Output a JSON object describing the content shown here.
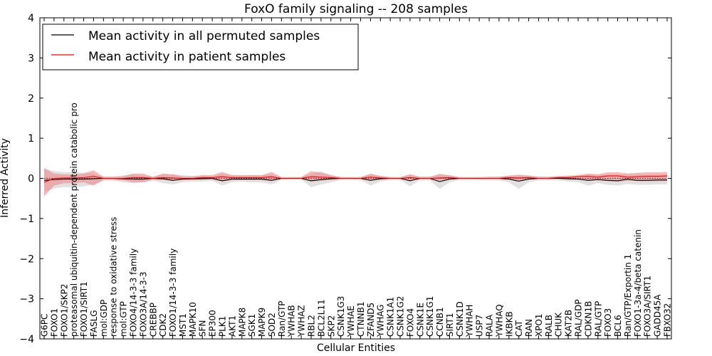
{
  "chart_data": {
    "type": "line",
    "title": "FoxO family signaling -- 208 samples",
    "xlabel": "Cellular Entities",
    "ylabel": "Inferred Activity",
    "ylim": [
      -4,
      4
    ],
    "yticks": [
      -4,
      -3,
      -2,
      -1,
      0,
      1,
      2,
      3,
      4
    ],
    "ytick_labels": [
      "−4",
      "−3",
      "−2",
      "−1",
      "0",
      "1",
      "2",
      "3",
      "4"
    ],
    "legend_position": "top-left",
    "categories": [
      "G6PC",
      "FOXO1",
      "FOXO1/SKP2",
      "proteasomal ubiquitin-dependent protein catabolic pro",
      "FOXO1/SIRT1",
      "FASLG",
      "mol:GDP",
      "response to oxidative stress",
      "mol:GTP",
      "FOXO4/14-3-3 family",
      "FOXO3A/14-3-3",
      "CREBBP",
      "CDK2",
      "FOXO1/14-3-3 family",
      "MST1",
      "MAPK10",
      "SFN",
      "EP300",
      "PLK1",
      "AKT1",
      "MAPK8",
      "SGK1",
      "MAPK9",
      "SOD2",
      "Ran/GTP",
      "YWHAB",
      "YWHAZ",
      "RBL2",
      "BCL2L11",
      "SKP2",
      "CSNK1G3",
      "YWHAE",
      "CTNNB1",
      "ZFAND5",
      "YWHAG",
      "CSNK1A1",
      "CSNK1G2",
      "FOXO4",
      "CSNK1E",
      "CSNK1G1",
      "CCNB1",
      "SIRT1",
      "CSNK1D",
      "YWHAH",
      "USP7",
      "RALA",
      "YWHAQ",
      "IKBKB",
      "CAT",
      "RAN",
      "XPO1",
      "RALB",
      "CHUK",
      "KAT2B",
      "RAL/GDP",
      "CDKN1B",
      "RAL/GTP",
      "FOXO3",
      "BCL6",
      "Ran/GTP/Exportin 1",
      "FOXO1-3a-4/beta catenin",
      "FOXO3A/SIRT1",
      "GADD45A",
      "FBXO32"
    ],
    "series": [
      {
        "name": "Mean activity in all permuted samples",
        "color": "#000000",
        "band_color": "#c8c8c8",
        "values": [
          -0.05,
          -0.03,
          -0.02,
          -0.02,
          -0.02,
          -0.01,
          0,
          0,
          -0.01,
          -0.02,
          -0.02,
          0,
          -0.01,
          -0.05,
          -0.02,
          -0.01,
          -0.01,
          0,
          -0.06,
          -0.02,
          -0.02,
          -0.02,
          -0.02,
          -0.05,
          0,
          0,
          0,
          -0.06,
          -0.03,
          -0.01,
          0,
          0,
          0,
          -0.05,
          -0.01,
          0,
          0,
          -0.06,
          0,
          0,
          -0.08,
          -0.02,
          0,
          0,
          0,
          0,
          0,
          -0.02,
          -0.07,
          -0.02,
          0,
          0,
          0,
          -0.01,
          -0.02,
          -0.05,
          -0.03,
          -0.05,
          -0.06,
          -0.02,
          -0.05,
          -0.05,
          -0.04,
          -0.04
        ],
        "band_lower": [
          -0.35,
          -0.25,
          -0.22,
          -0.22,
          -0.2,
          -0.15,
          -0.05,
          -0.05,
          -0.1,
          -0.12,
          -0.1,
          -0.05,
          -0.12,
          -0.15,
          -0.1,
          -0.08,
          -0.08,
          -0.06,
          -0.18,
          -0.1,
          -0.08,
          -0.1,
          -0.1,
          -0.15,
          -0.04,
          -0.03,
          -0.03,
          -0.22,
          -0.15,
          -0.1,
          -0.04,
          -0.03,
          -0.04,
          -0.18,
          -0.08,
          -0.04,
          -0.04,
          -0.2,
          -0.05,
          -0.05,
          -0.26,
          -0.1,
          -0.04,
          -0.04,
          -0.04,
          -0.05,
          -0.05,
          -0.1,
          -0.26,
          -0.1,
          -0.05,
          -0.05,
          -0.05,
          -0.08,
          -0.1,
          -0.18,
          -0.12,
          -0.16,
          -0.18,
          -0.14,
          -0.16,
          -0.16,
          -0.15,
          -0.15
        ],
        "band_upper": [
          0.25,
          0.18,
          0.15,
          0.15,
          0.14,
          0.12,
          0.04,
          0.04,
          0.08,
          0.1,
          0.08,
          0.04,
          0.1,
          0.1,
          0.08,
          0.06,
          0.06,
          0.05,
          0.12,
          0.08,
          0.06,
          0.08,
          0.08,
          0.1,
          0.03,
          0.03,
          0.03,
          0.12,
          0.18,
          0.08,
          0.03,
          0.03,
          0.03,
          0.1,
          0.06,
          0.03,
          0.03,
          0.1,
          0.04,
          0.04,
          0.12,
          0.07,
          0.03,
          0.03,
          0.03,
          0.04,
          0.04,
          0.07,
          0.1,
          0.07,
          0.04,
          0.04,
          0.04,
          0.06,
          0.06,
          0.1,
          0.09,
          0.1,
          0.1,
          0.1,
          0.1,
          0.1,
          0.09,
          0.09
        ]
      },
      {
        "name": "Mean activity in patient samples",
        "color": "#ff0000",
        "band_color": "#f08080",
        "values": [
          -0.1,
          0,
          0.01,
          0.01,
          0.02,
          0.05,
          0,
          0,
          0,
          0.02,
          0.02,
          0,
          0.02,
          0.01,
          0,
          0,
          0.02,
          0.02,
          0.04,
          0.02,
          0.02,
          0.02,
          0.02,
          0.04,
          0,
          0,
          0,
          0.04,
          0.03,
          0.02,
          0,
          0,
          0,
          0.03,
          0.01,
          0,
          0,
          0.02,
          0,
          0,
          0.01,
          0.02,
          0,
          0,
          0,
          0,
          0,
          0.02,
          0.01,
          0.02,
          0,
          0,
          0.02,
          0.02,
          0.04,
          0.05,
          0.03,
          0.06,
          0.06,
          0.03,
          0.04,
          0.05,
          0.05,
          0.06
        ],
        "band_lower": [
          -0.45,
          -0.18,
          -0.12,
          -0.12,
          -0.1,
          -0.18,
          -0.04,
          -0.04,
          -0.05,
          -0.1,
          -0.1,
          -0.04,
          -0.04,
          -0.06,
          -0.04,
          -0.04,
          -0.03,
          -0.03,
          -0.08,
          -0.04,
          -0.04,
          -0.04,
          -0.04,
          -0.07,
          -0.02,
          -0.02,
          -0.02,
          -0.08,
          -0.06,
          -0.04,
          -0.02,
          -0.02,
          -0.02,
          -0.06,
          -0.03,
          -0.02,
          -0.02,
          -0.05,
          -0.02,
          -0.02,
          -0.05,
          -0.03,
          -0.02,
          -0.02,
          -0.02,
          -0.02,
          -0.02,
          -0.03,
          -0.05,
          -0.03,
          -0.02,
          -0.02,
          -0.02,
          -0.03,
          -0.03,
          -0.06,
          -0.05,
          -0.07,
          -0.08,
          -0.06,
          -0.07,
          -0.07,
          -0.07,
          -0.07
        ],
        "band_upper": [
          0.25,
          0.12,
          0.1,
          0.1,
          0.12,
          0.2,
          0.04,
          0.04,
          0.05,
          0.12,
          0.12,
          0.04,
          0.12,
          0.1,
          0.05,
          0.05,
          0.08,
          0.08,
          0.16,
          0.08,
          0.08,
          0.08,
          0.08,
          0.16,
          0.03,
          0.03,
          0.03,
          0.18,
          0.14,
          0.08,
          0.03,
          0.03,
          0.03,
          0.12,
          0.06,
          0.03,
          0.03,
          0.1,
          0.04,
          0.04,
          0.1,
          0.08,
          0.03,
          0.03,
          0.03,
          0.04,
          0.04,
          0.07,
          0.08,
          0.07,
          0.04,
          0.04,
          0.06,
          0.07,
          0.08,
          0.12,
          0.1,
          0.15,
          0.15,
          0.12,
          0.14,
          0.15,
          0.15,
          0.16
        ]
      }
    ]
  }
}
